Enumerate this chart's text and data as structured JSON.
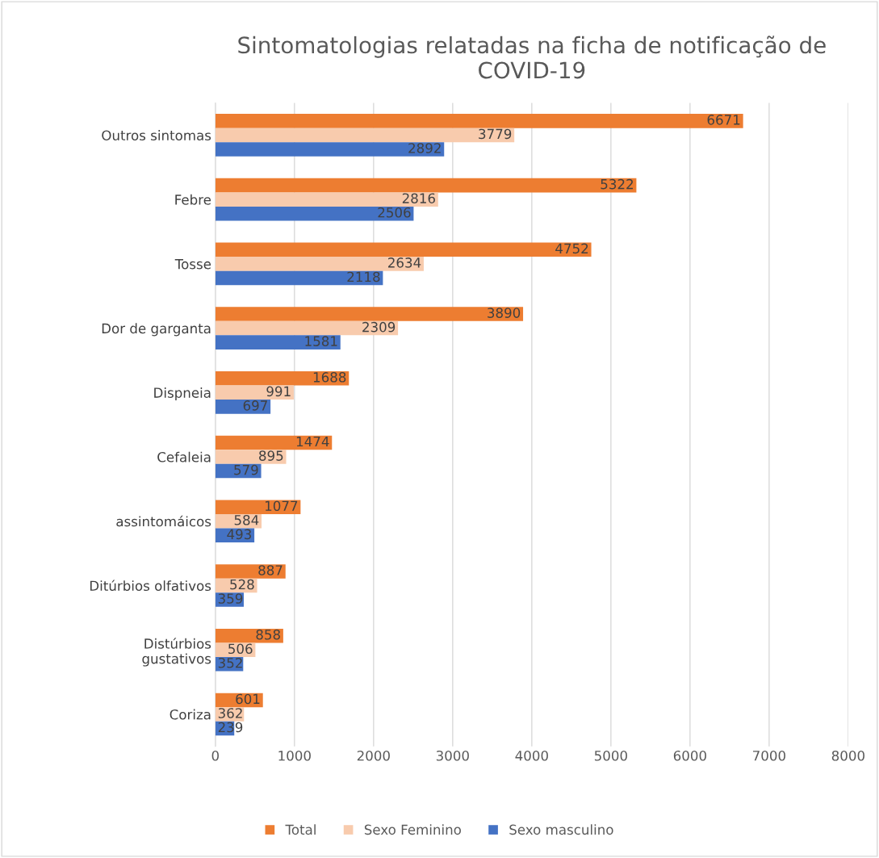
{
  "chart_data": {
    "type": "bar",
    "orientation": "horizontal",
    "title": "Sintomatologias relatadas na ficha de notificação de COVID-19",
    "categories": [
      "Outros sintomas",
      "Febre",
      "Tosse",
      "Dor de garganta",
      "Dispneia",
      "Cefaleia",
      "assintomáicos",
      "Ditúrbios olfativos",
      "Distúrbios\ngustativos",
      "Coriza"
    ],
    "series": [
      {
        "name": "Total",
        "color": "#ed7d31",
        "values": [
          6671,
          5322,
          4752,
          3890,
          1688,
          1474,
          1077,
          887,
          858,
          601
        ]
      },
      {
        "name": "Sexo Feminino",
        "color": "#f8cbad",
        "values": [
          3779,
          2816,
          2634,
          2309,
          991,
          895,
          584,
          528,
          506,
          362
        ]
      },
      {
        "name": "Sexo masculino",
        "color": "#4472c4",
        "values": [
          2892,
          2506,
          2118,
          1581,
          697,
          579,
          493,
          359,
          352,
          239
        ]
      }
    ],
    "xlim": [
      0,
      8000
    ],
    "xticks": [
      0,
      1000,
      2000,
      3000,
      4000,
      5000,
      6000,
      7000,
      8000
    ],
    "grid": "x",
    "legend": "bottom",
    "data_labels": true
  }
}
